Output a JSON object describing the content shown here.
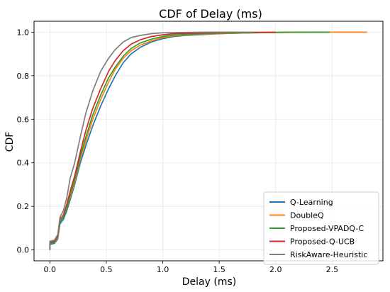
{
  "chart_data": {
    "type": "line",
    "title": "CDF of Delay (ms)",
    "xlabel": "Delay (ms)",
    "ylabel": "CDF",
    "xlim": [
      -0.14,
      2.95
    ],
    "ylim": [
      -0.05,
      1.05
    ],
    "xticks": [
      0.0,
      0.5,
      1.0,
      1.5,
      2.0,
      2.5
    ],
    "yticks": [
      0.0,
      0.2,
      0.4,
      0.6,
      0.8,
      1.0
    ],
    "xtick_labels": [
      "0.0",
      "0.5",
      "1.0",
      "1.5",
      "2.0",
      "2.5"
    ],
    "ytick_labels": [
      "0.0",
      "0.2",
      "0.4",
      "0.6",
      "0.8",
      "1.0"
    ],
    "grid": true,
    "legend_position": "lower-right",
    "series": [
      {
        "name": "Q-Learning",
        "color": "#1f77b4",
        "points": [
          [
            0.0,
            0.0
          ],
          [
            0.0,
            0.025
          ],
          [
            0.04,
            0.03
          ],
          [
            0.07,
            0.05
          ],
          [
            0.09,
            0.12
          ],
          [
            0.12,
            0.14
          ],
          [
            0.15,
            0.18
          ],
          [
            0.18,
            0.23
          ],
          [
            0.22,
            0.3
          ],
          [
            0.27,
            0.4
          ],
          [
            0.32,
            0.48
          ],
          [
            0.38,
            0.57
          ],
          [
            0.45,
            0.66
          ],
          [
            0.52,
            0.74
          ],
          [
            0.58,
            0.8
          ],
          [
            0.65,
            0.86
          ],
          [
            0.72,
            0.9
          ],
          [
            0.8,
            0.93
          ],
          [
            0.9,
            0.955
          ],
          [
            1.0,
            0.97
          ],
          [
            1.1,
            0.98
          ],
          [
            1.2,
            0.985
          ],
          [
            1.4,
            0.99
          ],
          [
            1.6,
            0.995
          ],
          [
            1.9,
            0.998
          ],
          [
            2.3,
            1.0
          ]
        ]
      },
      {
        "name": "DoubleQ",
        "color": "#ff7f0e",
        "points": [
          [
            0.0,
            0.0
          ],
          [
            0.0,
            0.03
          ],
          [
            0.04,
            0.035
          ],
          [
            0.07,
            0.055
          ],
          [
            0.09,
            0.13
          ],
          [
            0.12,
            0.15
          ],
          [
            0.15,
            0.19
          ],
          [
            0.18,
            0.24
          ],
          [
            0.22,
            0.31
          ],
          [
            0.27,
            0.42
          ],
          [
            0.32,
            0.5
          ],
          [
            0.38,
            0.6
          ],
          [
            0.45,
            0.69
          ],
          [
            0.52,
            0.77
          ],
          [
            0.58,
            0.83
          ],
          [
            0.65,
            0.88
          ],
          [
            0.72,
            0.915
          ],
          [
            0.8,
            0.94
          ],
          [
            0.9,
            0.96
          ],
          [
            1.0,
            0.975
          ],
          [
            1.1,
            0.983
          ],
          [
            1.3,
            0.99
          ],
          [
            1.5,
            0.993
          ],
          [
            1.8,
            0.997
          ],
          [
            2.2,
            0.999
          ],
          [
            2.5,
            1.0
          ],
          [
            2.81,
            1.0
          ]
        ]
      },
      {
        "name": "Proposed-VPADQ-C",
        "color": "#2ca02c",
        "points": [
          [
            0.0,
            0.0
          ],
          [
            0.0,
            0.03
          ],
          [
            0.04,
            0.035
          ],
          [
            0.07,
            0.06
          ],
          [
            0.09,
            0.13
          ],
          [
            0.12,
            0.15
          ],
          [
            0.15,
            0.19
          ],
          [
            0.18,
            0.25
          ],
          [
            0.22,
            0.32
          ],
          [
            0.27,
            0.43
          ],
          [
            0.32,
            0.52
          ],
          [
            0.38,
            0.62
          ],
          [
            0.45,
            0.71
          ],
          [
            0.52,
            0.79
          ],
          [
            0.58,
            0.84
          ],
          [
            0.65,
            0.89
          ],
          [
            0.72,
            0.925
          ],
          [
            0.8,
            0.95
          ],
          [
            0.9,
            0.968
          ],
          [
            1.0,
            0.98
          ],
          [
            1.1,
            0.987
          ],
          [
            1.3,
            0.992
          ],
          [
            1.5,
            0.995
          ],
          [
            1.8,
            0.998
          ],
          [
            2.1,
            1.0
          ],
          [
            2.48,
            1.0
          ]
        ]
      },
      {
        "name": "Proposed-Q-UCB",
        "color": "#d62728",
        "points": [
          [
            0.0,
            0.0
          ],
          [
            0.0,
            0.035
          ],
          [
            0.04,
            0.04
          ],
          [
            0.07,
            0.065
          ],
          [
            0.09,
            0.14
          ],
          [
            0.12,
            0.16
          ],
          [
            0.15,
            0.21
          ],
          [
            0.18,
            0.27
          ],
          [
            0.22,
            0.34
          ],
          [
            0.27,
            0.45
          ],
          [
            0.32,
            0.55
          ],
          [
            0.38,
            0.65
          ],
          [
            0.45,
            0.74
          ],
          [
            0.52,
            0.82
          ],
          [
            0.58,
            0.87
          ],
          [
            0.65,
            0.915
          ],
          [
            0.72,
            0.945
          ],
          [
            0.8,
            0.965
          ],
          [
            0.9,
            0.98
          ],
          [
            1.0,
            0.988
          ],
          [
            1.1,
            0.993
          ],
          [
            1.3,
            0.996
          ],
          [
            1.6,
            0.999
          ],
          [
            2.0,
            1.0
          ]
        ]
      },
      {
        "name": "RiskAware-Heuristic",
        "color": "#7f7f7f",
        "points": [
          [
            0.0,
            0.0
          ],
          [
            0.0,
            0.04
          ],
          [
            0.04,
            0.045
          ],
          [
            0.07,
            0.07
          ],
          [
            0.09,
            0.15
          ],
          [
            0.12,
            0.18
          ],
          [
            0.15,
            0.24
          ],
          [
            0.18,
            0.33
          ],
          [
            0.22,
            0.4
          ],
          [
            0.27,
            0.52
          ],
          [
            0.32,
            0.63
          ],
          [
            0.38,
            0.73
          ],
          [
            0.45,
            0.82
          ],
          [
            0.52,
            0.88
          ],
          [
            0.58,
            0.92
          ],
          [
            0.65,
            0.955
          ],
          [
            0.72,
            0.975
          ],
          [
            0.8,
            0.985
          ],
          [
            0.9,
            0.993
          ],
          [
            1.0,
            0.997
          ],
          [
            1.2,
            0.999
          ],
          [
            1.4,
            1.0
          ],
          [
            1.8,
            1.0
          ]
        ]
      }
    ]
  }
}
